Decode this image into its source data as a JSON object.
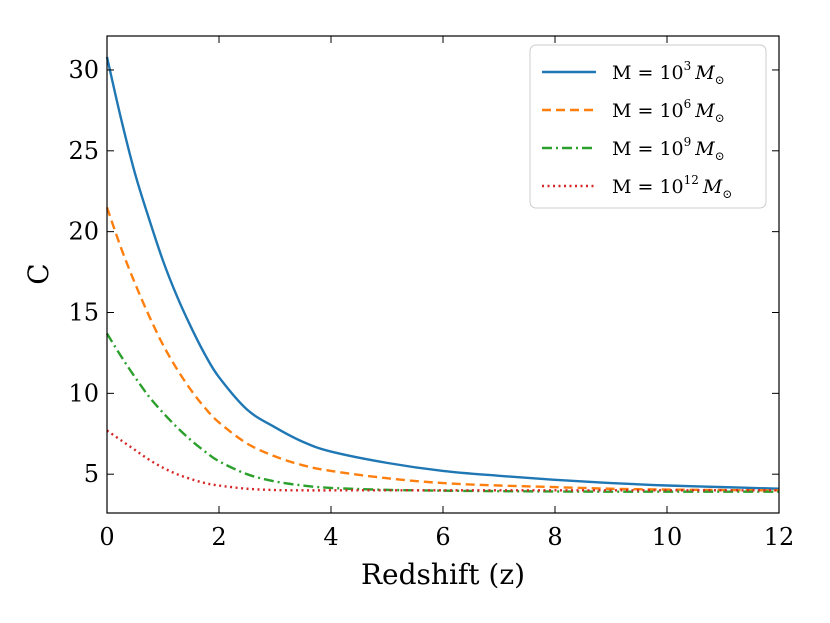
{
  "chart_data": {
    "type": "line",
    "title": "",
    "xlabel": "Redshift (z)",
    "ylabel": "C",
    "xlim": [
      0,
      12
    ],
    "ylim": [
      2.6,
      32.1
    ],
    "xticks": [
      0,
      2,
      4,
      6,
      8,
      10,
      12
    ],
    "yticks": [
      5,
      10,
      15,
      20,
      25,
      30
    ],
    "grid": false,
    "legend_position": "top-right",
    "series": [
      {
        "name": "M = 10^3 M_sun",
        "legend": {
          "prefix": "M = 10",
          "exp": "3",
          "symbol": "M",
          "sub": "⊙"
        },
        "color": "#1f77b4",
        "dash": "solid",
        "x": [
          0,
          0.25,
          0.5,
          0.75,
          1,
          1.25,
          1.5,
          1.75,
          2,
          2.5,
          3,
          3.5,
          4,
          5,
          6,
          7,
          8,
          9,
          10,
          11,
          12
        ],
        "y": [
          30.8,
          27.0,
          23.6,
          20.8,
          18.2,
          16.0,
          14.1,
          12.4,
          11.0,
          9.0,
          7.9,
          7.0,
          6.4,
          5.7,
          5.2,
          4.9,
          4.65,
          4.45,
          4.3,
          4.2,
          4.1
        ]
      },
      {
        "name": "M = 10^6 M_sun",
        "legend": {
          "prefix": "M = 10",
          "exp": "6",
          "symbol": "M",
          "sub": "⊙"
        },
        "color": "#ff7f0e",
        "dash": "dashed",
        "x": [
          0,
          0.25,
          0.5,
          0.75,
          1,
          1.25,
          1.5,
          1.75,
          2,
          2.5,
          3,
          3.5,
          4,
          5,
          6,
          7,
          8,
          9,
          10,
          11,
          12
        ],
        "y": [
          21.5,
          19.0,
          16.8,
          14.8,
          13.0,
          11.5,
          10.2,
          9.1,
          8.2,
          6.9,
          6.1,
          5.55,
          5.2,
          4.75,
          4.45,
          4.3,
          4.2,
          4.1,
          4.05,
          4.02,
          4.0
        ]
      },
      {
        "name": "M = 10^9 M_sun",
        "legend": {
          "prefix": "M = 10",
          "exp": "9",
          "symbol": "M",
          "sub": "⊙"
        },
        "color": "#2ca02c",
        "dash": "dashdot",
        "x": [
          0,
          0.25,
          0.5,
          0.75,
          1,
          1.25,
          1.5,
          1.75,
          2,
          2.5,
          3,
          3.5,
          4,
          5,
          6,
          7,
          8,
          9,
          10,
          11,
          12
        ],
        "y": [
          13.7,
          12.3,
          11.0,
          9.8,
          8.8,
          7.9,
          7.1,
          6.4,
          5.8,
          5.0,
          4.55,
          4.3,
          4.15,
          4.03,
          3.98,
          3.95,
          3.93,
          3.92,
          3.92,
          3.92,
          3.92
        ]
      },
      {
        "name": "M = 10^12 M_sun",
        "legend": {
          "prefix": "M = 10",
          "exp": "12",
          "symbol": "M",
          "sub": "⊙"
        },
        "color": "#d62728",
        "dash": "dotted",
        "x": [
          0,
          0.25,
          0.5,
          0.75,
          1,
          1.25,
          1.5,
          1.75,
          2,
          2.5,
          3,
          3.5,
          4,
          5,
          6,
          7,
          8,
          9,
          10,
          11,
          12
        ],
        "y": [
          7.7,
          7.1,
          6.5,
          5.9,
          5.4,
          5.0,
          4.7,
          4.45,
          4.3,
          4.1,
          4.02,
          4.0,
          4.0,
          4.0,
          4.0,
          4.0,
          4.0,
          4.0,
          4.0,
          4.0,
          4.0
        ]
      }
    ]
  }
}
